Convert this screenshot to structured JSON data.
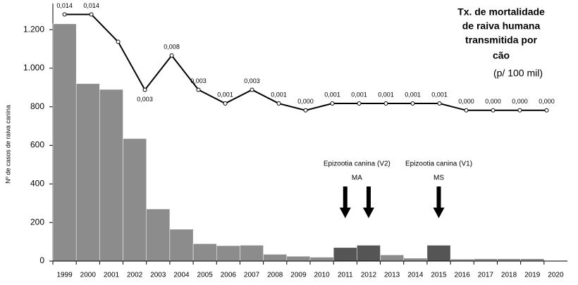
{
  "chart_data": {
    "type": "bar",
    "title": [
      "Tx. de mortalidade",
      "de raiva humana",
      "transmitida por",
      "cão"
    ],
    "subtitle": "(p/ 100 mil)",
    "y_label": "Nº de casos de raiva canina",
    "categories": [
      "1999",
      "2000",
      "2001",
      "2002",
      "2003",
      "2004",
      "2005",
      "2006",
      "2007",
      "2008",
      "2009",
      "2010",
      "2011",
      "2012",
      "2013",
      "2014",
      "2015",
      "2016",
      "2017",
      "2018",
      "2019",
      "2020"
    ],
    "values": [
      1230,
      920,
      890,
      635,
      270,
      165,
      90,
      80,
      82,
      35,
      25,
      20,
      70,
      82,
      32,
      15,
      82,
      10,
      12,
      12,
      12,
      3
    ],
    "colors": [
      "#8c8c8c",
      "#8c8c8c",
      "#8c8c8c",
      "#8c8c8c",
      "#8c8c8c",
      "#8c8c8c",
      "#8c8c8c",
      "#8c8c8c",
      "#8c8c8c",
      "#8c8c8c",
      "#8c8c8c",
      "#8c8c8c",
      "#555555",
      "#555555",
      "#8c8c8c",
      "#8c8c8c",
      "#555555",
      "#8c8c8c",
      "#8c8c8c",
      "#8c8c8c",
      "#8c8c8c",
      "#8c8c8c"
    ],
    "ylim": [
      0,
      1350
    ],
    "yticks": [
      0,
      200,
      400,
      600,
      800,
      {
        "value": 1000,
        "label": "1.000"
      },
      {
        "value": 1200,
        "label": "1.200"
      }
    ],
    "y2lim": [
      -0.022,
      0.016
    ],
    "line": {
      "type": "line",
      "axis": "y2",
      "color": "#000000",
      "values": [
        0.014,
        0.014,
        0.01,
        0.003,
        0.008,
        0.003,
        0.001,
        0.003,
        0.001,
        0.0,
        0.001,
        0.001,
        0.001,
        0.001,
        0.001,
        0.0,
        0.0,
        0.0,
        0.0
      ],
      "value_labels": [
        "0,014",
        "0,014",
        null,
        "0,003",
        "0,008",
        "0,003",
        "0,001",
        "0,003",
        "0,001",
        "0,000",
        "0,001",
        "0,001",
        "0,001",
        "0,001",
        "0,001",
        "0,000",
        "0,000",
        "0,000",
        "0,000"
      ]
    },
    "annotations": [
      {
        "text": [
          "Epizootia canina (V2)",
          "MA"
        ],
        "categories": [
          12,
          13
        ]
      },
      {
        "text": [
          "Epizootia canina (V1)",
          "MS"
        ],
        "categories": [
          16
        ]
      }
    ]
  }
}
